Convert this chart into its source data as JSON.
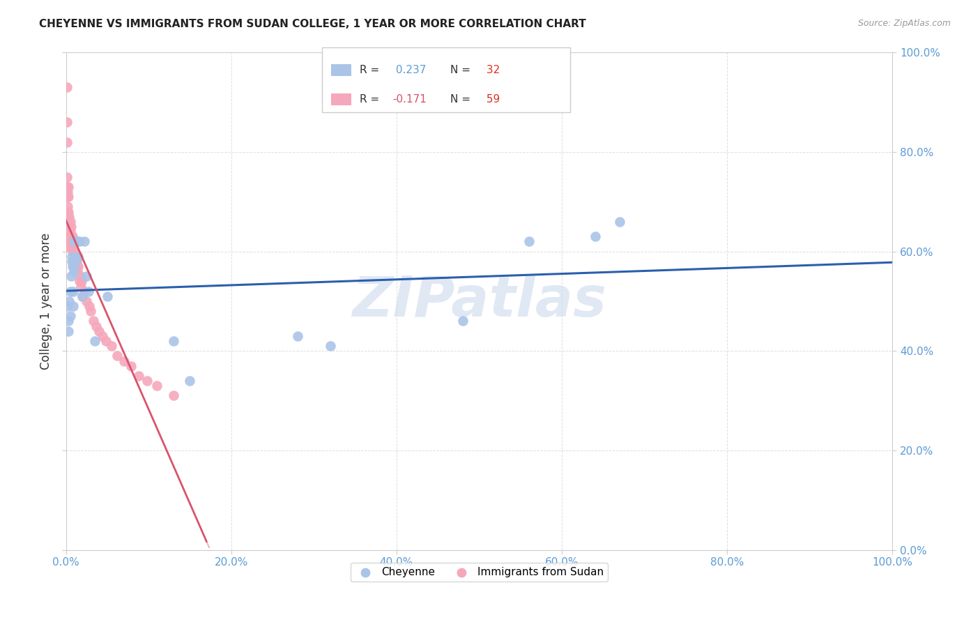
{
  "title": "CHEYENNE VS IMMIGRANTS FROM SUDAN COLLEGE, 1 YEAR OR MORE CORRELATION CHART",
  "source": "Source: ZipAtlas.com",
  "ylabel": "College, 1 year or more",
  "cheyenne_R": 0.237,
  "cheyenne_N": 32,
  "sudan_R": -0.171,
  "sudan_N": 59,
  "cheyenne_color": "#aac4e8",
  "sudan_color": "#f5a8bb",
  "cheyenne_line_color": "#2b5fad",
  "sudan_line_color": "#d9536a",
  "watermark_text": "ZIPatlas",
  "cheyenne_x": [
    0.002,
    0.003,
    0.003,
    0.004,
    0.005,
    0.005,
    0.006,
    0.007,
    0.007,
    0.008,
    0.009,
    0.009,
    0.01,
    0.01,
    0.012,
    0.014,
    0.015,
    0.016,
    0.02,
    0.022,
    0.025,
    0.027,
    0.035,
    0.05,
    0.13,
    0.15,
    0.28,
    0.32,
    0.48,
    0.56,
    0.64,
    0.67
  ],
  "cheyenne_y": [
    0.49,
    0.46,
    0.44,
    0.5,
    0.52,
    0.47,
    0.55,
    0.58,
    0.59,
    0.57,
    0.52,
    0.49,
    0.56,
    0.62,
    0.58,
    0.62,
    0.59,
    0.62,
    0.51,
    0.62,
    0.55,
    0.52,
    0.42,
    0.51,
    0.42,
    0.34,
    0.43,
    0.41,
    0.46,
    0.62,
    0.63,
    0.66
  ],
  "sudan_x": [
    0.001,
    0.001,
    0.001,
    0.001,
    0.001,
    0.001,
    0.001,
    0.002,
    0.002,
    0.002,
    0.002,
    0.003,
    0.003,
    0.003,
    0.003,
    0.004,
    0.004,
    0.004,
    0.004,
    0.005,
    0.005,
    0.005,
    0.006,
    0.006,
    0.007,
    0.007,
    0.008,
    0.008,
    0.009,
    0.009,
    0.01,
    0.01,
    0.011,
    0.012,
    0.013,
    0.014,
    0.015,
    0.016,
    0.017,
    0.018,
    0.019,
    0.02,
    0.022,
    0.025,
    0.028,
    0.03,
    0.033,
    0.037,
    0.04,
    0.044,
    0.048,
    0.055,
    0.062,
    0.07,
    0.079,
    0.088,
    0.098,
    0.11,
    0.13
  ],
  "sudan_y": [
    0.93,
    0.86,
    0.82,
    0.75,
    0.73,
    0.71,
    0.68,
    0.72,
    0.69,
    0.67,
    0.65,
    0.73,
    0.71,
    0.68,
    0.65,
    0.67,
    0.65,
    0.63,
    0.61,
    0.66,
    0.64,
    0.62,
    0.65,
    0.63,
    0.63,
    0.61,
    0.63,
    0.6,
    0.61,
    0.58,
    0.6,
    0.57,
    0.59,
    0.57,
    0.58,
    0.56,
    0.57,
    0.54,
    0.55,
    0.53,
    0.54,
    0.51,
    0.52,
    0.5,
    0.49,
    0.48,
    0.46,
    0.45,
    0.44,
    0.43,
    0.42,
    0.41,
    0.39,
    0.38,
    0.37,
    0.35,
    0.34,
    0.33,
    0.31
  ],
  "xlim": [
    0.0,
    1.0
  ],
  "ylim": [
    0.0,
    1.0
  ],
  "xtick_positions": [
    0.0,
    0.2,
    0.4,
    0.6,
    0.8,
    1.0
  ],
  "ytick_positions": [
    0.0,
    0.2,
    0.4,
    0.6,
    0.8,
    1.0
  ],
  "xtick_labels": [
    "0.0%",
    "20.0%",
    "40.0%",
    "60.0%",
    "80.0%",
    "100.0%"
  ],
  "ytick_labels_left": [
    "",
    "",
    "",
    "",
    "",
    ""
  ],
  "ytick_labels_right": [
    "0.0%",
    "20.0%",
    "40.0%",
    "60.0%",
    "80.0%",
    "100.0%"
  ]
}
